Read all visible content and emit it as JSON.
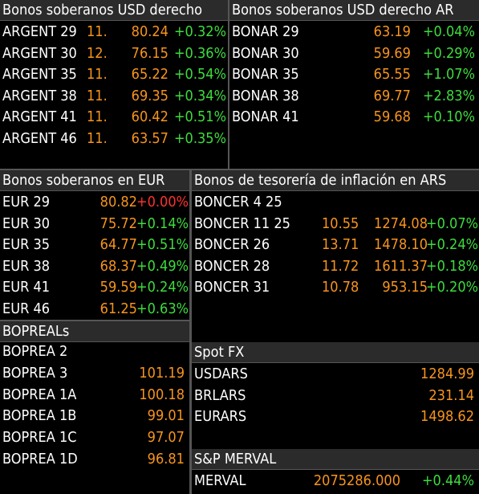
{
  "panels": {
    "usd_derecho": {
      "title": "Bonos soberanos USD derecho",
      "rows": [
        {
          "name": "ARGENT 29",
          "mid": "11.",
          "price": "80.24",
          "chg": "+0.32%"
        },
        {
          "name": "ARGENT 30",
          "mid": "12.",
          "price": "76.15",
          "chg": "+0.36%"
        },
        {
          "name": "ARGENT 35",
          "mid": "11.",
          "price": "65.22",
          "chg": "+0.54%"
        },
        {
          "name": "ARGENT 38",
          "mid": "11.",
          "price": "69.35",
          "chg": "+0.34%"
        },
        {
          "name": "ARGENT 41",
          "mid": "11.",
          "price": "60.42",
          "chg": "+0.51%"
        },
        {
          "name": "ARGENT 46",
          "mid": "11.",
          "price": "63.57",
          "chg": "+0.35%"
        }
      ]
    },
    "usd_derecho_ar": {
      "title": "Bonos soberanos USD derecho AR",
      "rows": [
        {
          "name": "BONAR 29",
          "price": "63.19",
          "chg": "+0.04%"
        },
        {
          "name": "BONAR 30",
          "price": "59.69",
          "chg": "+0.29%"
        },
        {
          "name": "BONAR 35",
          "price": "65.55",
          "chg": "+1.07%"
        },
        {
          "name": "BONAR 38",
          "price": "69.77",
          "chg": "+2.83%"
        },
        {
          "name": "BONAR 41",
          "price": "59.68",
          "chg": "+0.10%"
        }
      ]
    },
    "eur": {
      "title": "Bonos soberanos en EUR",
      "rows": [
        {
          "name": "EUR 29",
          "price": "80.82",
          "chg": "+0.00%",
          "neg": true
        },
        {
          "name": "EUR 30",
          "price": "75.72",
          "chg": "+0.14%"
        },
        {
          "name": "EUR 35",
          "price": "64.77",
          "chg": "+0.51%"
        },
        {
          "name": "EUR 38",
          "price": "68.37",
          "chg": "+0.49%"
        },
        {
          "name": "EUR 41",
          "price": "59.59",
          "chg": "+0.24%"
        },
        {
          "name": "EUR 46",
          "price": "61.25",
          "chg": "+0.63%"
        }
      ]
    },
    "inflacion": {
      "title": "Bonos de tesorería de inflación en ARS",
      "rows": [
        {
          "name": "BONCER 4 25",
          "yield": "",
          "price": "",
          "chg": ""
        },
        {
          "name": "BONCER 11 25",
          "yield": "10.55",
          "price": "1274.08",
          "chg": "+0.07%"
        },
        {
          "name": "BONCER 26",
          "yield": "13.71",
          "price": "1478.10",
          "chg": "+0.24%"
        },
        {
          "name": "BONCER 28",
          "yield": "11.72",
          "price": "1611.37",
          "chg": "+0.18%"
        },
        {
          "name": "BONCER 31",
          "yield": "10.78",
          "price": "953.15",
          "chg": "+0.20%"
        }
      ]
    },
    "bopreal": {
      "title": "BOPREALs",
      "rows": [
        {
          "name": "BOPREA 2",
          "price": ""
        },
        {
          "name": "BOPREA 3",
          "price": "101.19"
        },
        {
          "name": "BOPREA 1A",
          "price": "100.18"
        },
        {
          "name": "BOPREA 1B",
          "price": "99.01"
        },
        {
          "name": "BOPREA 1C",
          "price": "97.07"
        },
        {
          "name": "BOPREA 1D",
          "price": "96.81"
        }
      ]
    },
    "spot_fx": {
      "title": "Spot FX",
      "rows": [
        {
          "name": "USDARS",
          "price": "1284.99"
        },
        {
          "name": "BRLARS",
          "price": "231.14"
        },
        {
          "name": "EURARS",
          "price": "1498.62"
        }
      ]
    },
    "merval": {
      "title": "S&P MERVAL",
      "rows": [
        {
          "name": "MERVAL",
          "price": "2075286.000",
          "chg": "+0.44%"
        }
      ]
    }
  },
  "colors": {
    "positive": "#3ddc3d",
    "negative": "#ff3030",
    "value": "#f7941d",
    "header_bg": "#2b2b2b"
  }
}
